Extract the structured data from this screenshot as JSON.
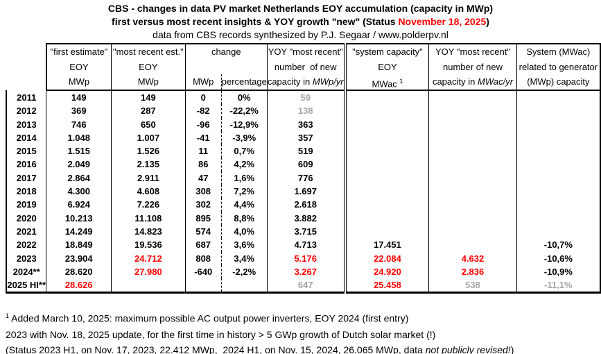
{
  "colors": {
    "accent_red": "#ff0000",
    "muted_gray": "#a6a6a6",
    "text": "#000000",
    "border": "#000000"
  },
  "title": {
    "line1": "CBS - changes in data PV market Netherlands EOY accumulation (capacity in MWp)",
    "line2_pre": "first versus most recent insights & YOY growth \"new\" (Status ",
    "line2_date": "November 18, 2025",
    "line2_post": ")",
    "line3": "data from CBS records synthesized by P.J. Segaar / www.polderpv.nl"
  },
  "header": {
    "col_first": {
      "l1": "\"first estimate\"",
      "l2": "EOY",
      "l3": "MWp"
    },
    "col_recent": {
      "l1": "\"most recent est.\"",
      "l2": "EOY",
      "l3": "MWp"
    },
    "col_change": {
      "l1": "change",
      "sub_mwp": "MWp",
      "sub_pct": "percentage"
    },
    "col_yoy_mwp": {
      "l1": "YOY \"most recent\"",
      "l2": "number  of new",
      "l3_pre": "capacity in ",
      "l3_it": "MWp/yr"
    },
    "col_syscap": {
      "l1": "\"system capacity\"",
      "l2": "EOY",
      "l3_pre": "MWac ",
      "l3_sup": "1"
    },
    "col_yoy_mwac": {
      "l1": "YOY \"most recent\"",
      "l2": "number of new",
      "l3_pre": "capacity in ",
      "l3_it": "MWac/yr"
    },
    "col_sysrel": {
      "l1": "System (MWac)",
      "l2": "related to generator",
      "l3": "(MWp) capacity"
    }
  },
  "chart_data": {
    "type": "table",
    "title": "CBS - changes in data PV market Netherlands EOY accumulation (capacity in MWp)",
    "subtitle": "first versus most recent insights & YOY growth \"new\" (Status November 18, 2025)",
    "source": "data from CBS records synthesized by P.J. Segaar / www.polderpv.nl",
    "columns": [
      "year",
      "first estimate EOY MWp",
      "most recent est. EOY MWp",
      "change MWp",
      "change percentage",
      "YOY most recent number of new capacity in MWp/yr",
      "system capacity EOY MWac",
      "YOY most recent number of new capacity in MWac/yr",
      "System (MWac) related to generator (MWp) capacity"
    ],
    "rows": [
      [
        "2011",
        "149",
        "149",
        "0",
        "0%",
        {
          "v": "59",
          "s": "gray"
        },
        "",
        "",
        ""
      ],
      [
        "2012",
        "369",
        "287",
        "-82",
        "-22,2%",
        {
          "v": "138",
          "s": "gray"
        },
        "",
        "",
        ""
      ],
      [
        "2013",
        "746",
        "650",
        "-96",
        "-12,9%",
        "363",
        "",
        "",
        ""
      ],
      [
        "2014",
        "1.048",
        "1.007",
        "-41",
        "-3,9%",
        "357",
        "",
        "",
        ""
      ],
      [
        "2015",
        "1.515",
        "1.526",
        "11",
        "0,7%",
        "519",
        "",
        "",
        ""
      ],
      [
        "2016",
        "2.049",
        "2.135",
        "86",
        "4,2%",
        "609",
        "",
        "",
        ""
      ],
      [
        "2017",
        "2.864",
        "2.911",
        "47",
        "1,6%",
        "776",
        "",
        "",
        ""
      ],
      [
        "2018",
        "4.300",
        "4.608",
        "308",
        "7,2%",
        "1.697",
        "",
        "",
        ""
      ],
      [
        "2019",
        "6.924",
        "7.226",
        "302",
        "4,4%",
        "2.618",
        "",
        "",
        ""
      ],
      [
        "2020",
        "10.213",
        "11.108",
        "895",
        "8,8%",
        "3.882",
        "",
        "",
        ""
      ],
      [
        "2021",
        "14.249",
        "14.823",
        "574",
        "4,0%",
        "3.715",
        "",
        "",
        ""
      ],
      [
        "2022",
        "18.849",
        "19.536",
        "687",
        "3,6%",
        "4.713",
        "17.451",
        "",
        "-10,7%"
      ],
      [
        "2023",
        "23.904",
        {
          "v": "24.712",
          "s": "red"
        },
        "808",
        "3,4%",
        {
          "v": "5.176",
          "s": "red"
        },
        {
          "v": "22.084",
          "s": "red"
        },
        {
          "v": "4.632",
          "s": "red"
        },
        "-10,6%"
      ],
      [
        "2024**",
        "28.620",
        {
          "v": "27.980",
          "s": "red"
        },
        "-640",
        "-2,2%",
        {
          "v": "3.267",
          "s": "red"
        },
        {
          "v": "24.920",
          "s": "red"
        },
        {
          "v": "2.836",
          "s": "red"
        },
        "-10,9%"
      ],
      [
        "2025 HI**",
        {
          "v": "28.626",
          "s": "red"
        },
        "",
        "",
        "",
        {
          "v": "647",
          "s": "gray"
        },
        {
          "v": "25.458",
          "s": "red"
        },
        {
          "v": "538",
          "s": "gray"
        },
        {
          "v": "-11,1%",
          "s": "gray"
        }
      ]
    ]
  },
  "footnotes": {
    "fn1_sup": "1",
    "fn1_text": " Added March 10, 2025: maximum possible AC output power inverters, EOY 2024 (first entry)",
    "fn2_text": "2023 with Nov. 18, 2025 update, for the first time in history > 5 GWp growth of Dutch solar market (!)",
    "fn3_pre": "(Status 2023 H1, on Nov. 17, 2023, 22.412 MWp,  2024 H1, on Nov. 15, 2024, 26.065 MWp, data ",
    "fn3_it": "not publicly revised!",
    "fn3_post": ")"
  }
}
